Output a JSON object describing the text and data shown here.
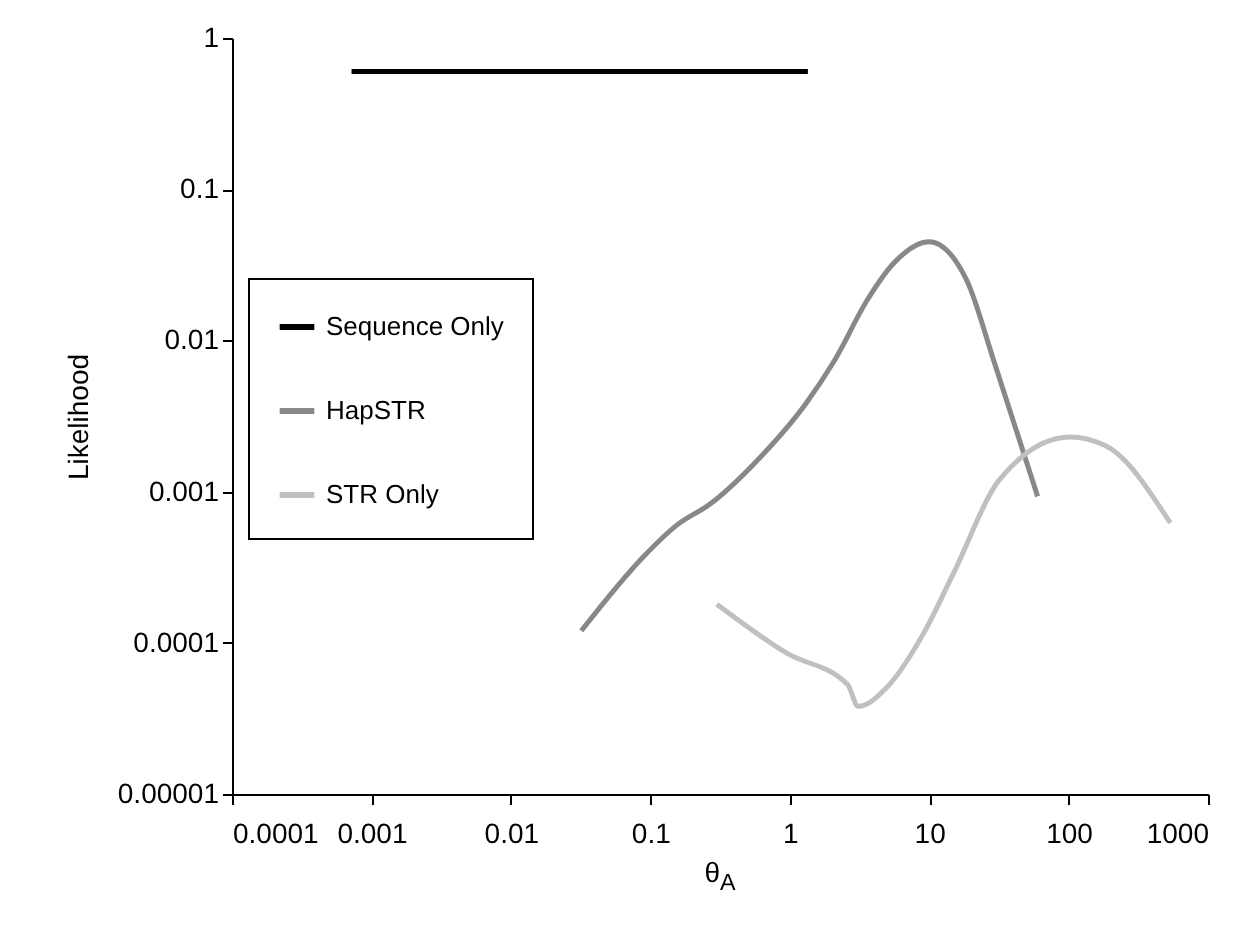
{
  "chart_data": {
    "type": "line",
    "xlabel": "θ$_{A}$",
    "ylabel": "Likelihood",
    "log": "xy",
    "grid": false,
    "legend": "left",
    "line_style": "solid",
    "marker": "none",
    "xlim": [
      0.0001,
      1000
    ],
    "xticks": [
      0.0001,
      0.001,
      0.01,
      0.1,
      1,
      10,
      100,
      1000
    ],
    "ylim": [
      1e-05,
      1
    ],
    "yticks": [
      {
        "value": 1e-05,
        "label": "0.00001"
      },
      0.0001,
      0.001,
      0.01,
      0.1,
      1
    ],
    "series": [
      {
        "name": "Sequence Only",
        "color": "#000000",
        "x": [
          0.00072,
          0.01,
          0.1,
          1.35
        ],
        "values": [
          0.6,
          0.6,
          0.6,
          0.6
        ]
      },
      {
        "name": "HapSTR",
        "color": "#888888",
        "x": [
          0.032,
          0.089,
          0.155,
          0.27,
          0.62,
          1.3,
          2.1,
          3.6,
          5.5,
          10,
          18.6,
          29,
          60
        ],
        "values": [
          0.00012,
          0.00037,
          0.0006,
          0.00083,
          0.0017,
          0.0038,
          0.0074,
          0.0185,
          0.032,
          0.045,
          0.025,
          0.0074,
          0.00093
        ]
      },
      {
        "name": "STR Only",
        "color": "#c0c0c0",
        "x": [
          0.3,
          0.96,
          2.6,
          3.1,
          5,
          9.1,
          15,
          32,
          102,
          186,
          537
        ],
        "values": [
          0.00018,
          8.5e-05,
          5.3e-05,
          3.8e-05,
          5.1e-05,
          0.000115,
          0.00029,
          0.0012,
          0.0023,
          0.002,
          0.00062
        ]
      }
    ]
  }
}
